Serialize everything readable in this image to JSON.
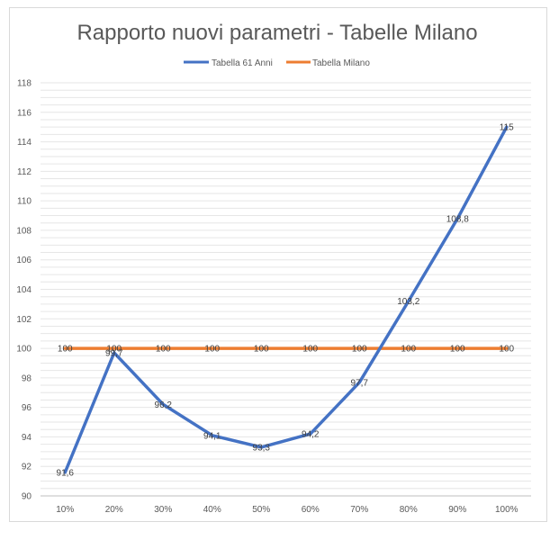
{
  "chart_data": {
    "type": "line",
    "title": "Rapporto nuovi parametri - Tabelle Milano",
    "categories": [
      "10%",
      "20%",
      "30%",
      "40%",
      "50%",
      "60%",
      "70%",
      "80%",
      "90%",
      "100%"
    ],
    "series": [
      {
        "name": "Tabella 61 Anni",
        "color": "#4472c4",
        "values": [
          91.6,
          99.7,
          96.2,
          94.1,
          93.3,
          94.2,
          97.7,
          103.2,
          108.8,
          115
        ],
        "labels": [
          "91,6",
          "99,7",
          "96,2",
          "94,1",
          "93,3",
          "94,2",
          "97,7",
          "103,2",
          "108,8",
          "115"
        ]
      },
      {
        "name": "Tabella Milano",
        "color": "#ed7d31",
        "values": [
          100,
          100,
          100,
          100,
          100,
          100,
          100,
          100,
          100,
          100
        ],
        "labels": [
          "100",
          "100",
          "100",
          "100",
          "100",
          "100",
          "100",
          "100",
          "100",
          "100"
        ]
      }
    ],
    "y_ticks": [
      "90",
      "92",
      "94",
      "96",
      "98",
      "100",
      "102",
      "104",
      "106",
      "108",
      "110",
      "112",
      "114",
      "116",
      "118"
    ],
    "ylim": [
      90,
      118
    ],
    "grid": true,
    "legend": "top"
  }
}
